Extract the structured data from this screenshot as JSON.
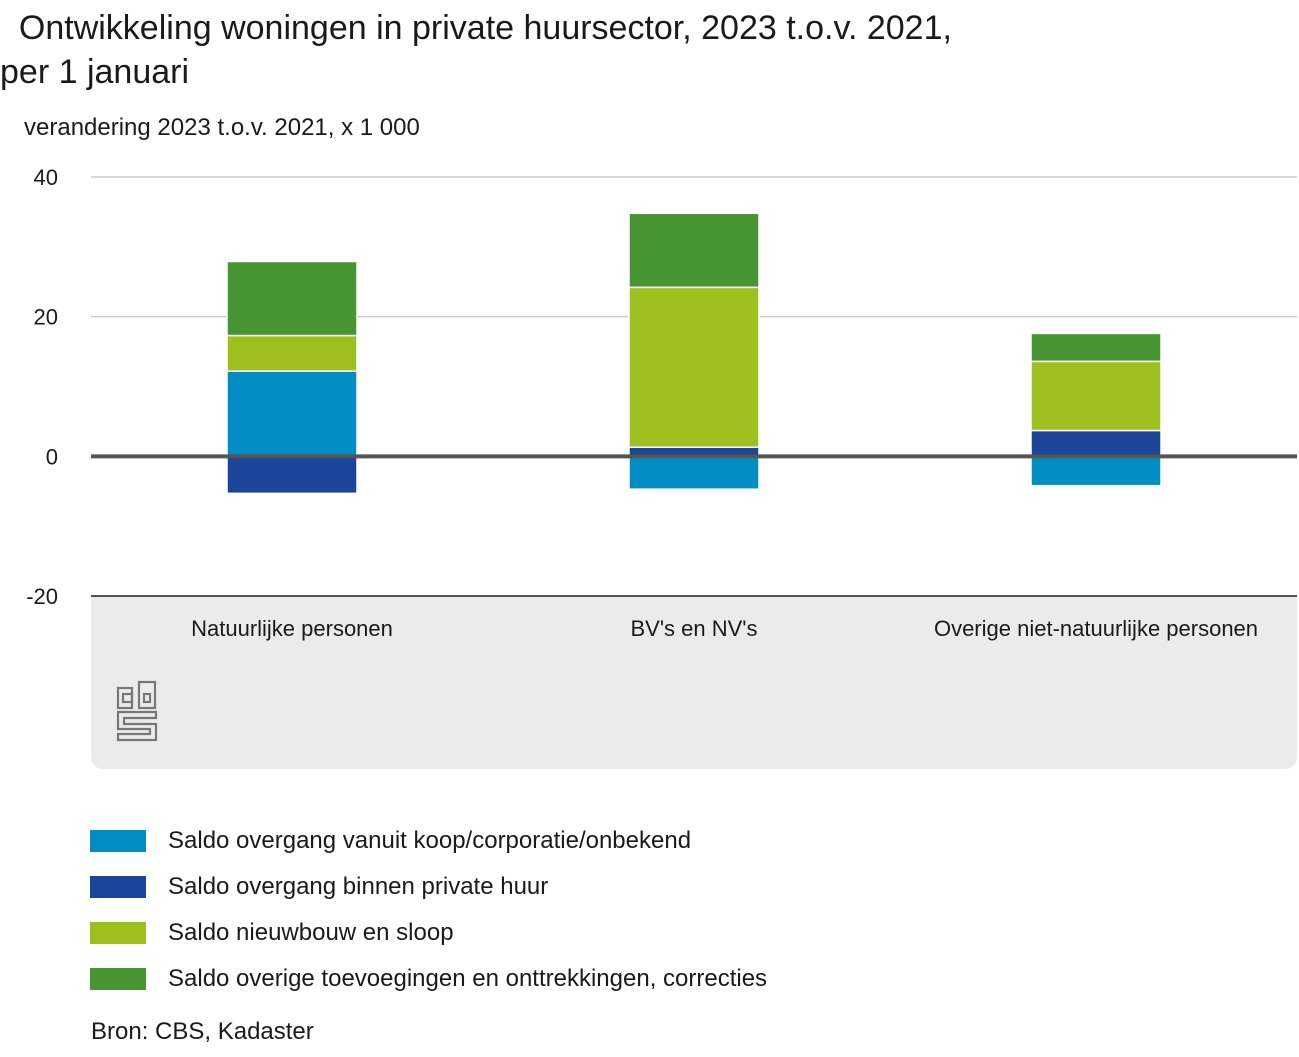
{
  "title_line1": "  Ontwikkeling woningen in private huursector, 2023 t.o.v. 2021,",
  "title_line2": "per 1 januari",
  "source": "Bron: CBS, Kadaster",
  "logo_text": "cbs",
  "chart_data": {
    "type": "bar",
    "stacked": true,
    "title": "Ontwikkeling woningen in private huursector, 2023 t.o.v. 2021, per 1 januari",
    "ylabel": "verandering 2023 t.o.v. 2021, x 1 000",
    "xlabel": "",
    "ylim": [
      -20,
      40
    ],
    "yticks": [
      40,
      20,
      0,
      -20
    ],
    "ytick_labels": [
      "40",
      "20",
      "0",
      "-20"
    ],
    "grid": true,
    "legend_position": "bottom",
    "categories": [
      "Natuurlijke personen",
      "BV's en NV's",
      "Overige niet-natuurlijke personen"
    ],
    "series": [
      {
        "name": "Saldo overgang vanuit koop/corporatie/onbekend",
        "color": "#008dc4",
        "values": [
          12.2,
          -4.7,
          -4.2
        ]
      },
      {
        "name": "Saldo overgang binnen private huur",
        "color": "#1b4598",
        "values": [
          -5.3,
          1.3,
          3.7
        ]
      },
      {
        "name": "Saldo nieuwbouw en sloop",
        "color": "#9fbf1e",
        "values": [
          5.1,
          22.9,
          9.9
        ]
      },
      {
        "name": "Saldo overige toevoegingen en onttrekkingen, correcties",
        "color": "#479533",
        "values": [
          10.6,
          10.6,
          4.0
        ]
      }
    ]
  }
}
